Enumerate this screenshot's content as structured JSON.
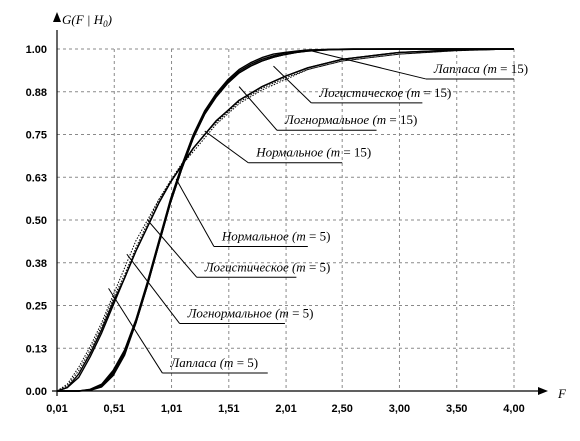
{
  "chart_data": {
    "type": "line",
    "ylabel": "G(F | H0)",
    "ylabel_parts": {
      "main": "G(F | H",
      "sub": "0",
      "close": ")"
    },
    "xlabel": "F",
    "xlim": [
      0.01,
      4.0
    ],
    "ylim": [
      0,
      1.0
    ],
    "grid": true,
    "x_ticks": [
      {
        "value": 0.01,
        "label": "0,01"
      },
      {
        "value": 0.51,
        "label": "0,51"
      },
      {
        "value": 1.01,
        "label": "1,01"
      },
      {
        "value": 1.51,
        "label": "1,51"
      },
      {
        "value": 2.01,
        "label": "2,01"
      },
      {
        "value": 2.5,
        "label": "2,50"
      },
      {
        "value": 3.0,
        "label": "3,00"
      },
      {
        "value": 3.5,
        "label": "3,50"
      },
      {
        "value": 4.0,
        "label": "4,00"
      }
    ],
    "y_ticks": [
      {
        "value": 0.0,
        "label": "0.00"
      },
      {
        "value": 0.125,
        "label": "0.13"
      },
      {
        "value": 0.25,
        "label": "0.25"
      },
      {
        "value": 0.375,
        "label": "0.38"
      },
      {
        "value": 0.5,
        "label": "0.50"
      },
      {
        "value": 0.625,
        "label": "0.63"
      },
      {
        "value": 0.75,
        "label": "0.75"
      },
      {
        "value": 0.875,
        "label": "0.88"
      },
      {
        "value": 1.0,
        "label": "1.00"
      }
    ],
    "series": [
      {
        "name": "Лапласа (m = 5)",
        "dash": "solid",
        "x": [
          0.01,
          0.1,
          0.2,
          0.3,
          0.4,
          0.5,
          0.6,
          0.7,
          0.8,
          0.9,
          1.0,
          1.1,
          1.2,
          1.3,
          1.4,
          1.5,
          1.6,
          1.8,
          2.0,
          2.2,
          2.5,
          3.0,
          3.5,
          4.0
        ],
        "y": [
          0.0,
          0.01,
          0.05,
          0.11,
          0.18,
          0.26,
          0.33,
          0.41,
          0.48,
          0.55,
          0.61,
          0.66,
          0.71,
          0.75,
          0.79,
          0.82,
          0.85,
          0.89,
          0.92,
          0.945,
          0.97,
          0.99,
          0.997,
          1.0
        ]
      },
      {
        "name": "Логнормальное (m = 5)",
        "dash": "solid",
        "x": [
          0.01,
          0.1,
          0.2,
          0.3,
          0.4,
          0.5,
          0.6,
          0.7,
          0.8,
          0.9,
          1.0,
          1.1,
          1.2,
          1.3,
          1.4,
          1.5,
          1.6,
          1.8,
          2.0,
          2.2,
          2.5,
          3.0,
          3.5,
          4.0
        ],
        "y": [
          0.0,
          0.01,
          0.04,
          0.1,
          0.17,
          0.25,
          0.33,
          0.41,
          0.48,
          0.55,
          0.61,
          0.66,
          0.71,
          0.75,
          0.79,
          0.82,
          0.85,
          0.89,
          0.92,
          0.945,
          0.97,
          0.99,
          0.997,
          1.0
        ]
      },
      {
        "name": "Логистическое (m = 5)",
        "dash": "dotted",
        "x": [
          0.01,
          0.1,
          0.2,
          0.3,
          0.4,
          0.5,
          0.6,
          0.7,
          0.8,
          0.9,
          1.0,
          1.1,
          1.2,
          1.3,
          1.4,
          1.5,
          1.6,
          1.8,
          2.0,
          2.2,
          2.5,
          3.0,
          3.5,
          4.0
        ],
        "y": [
          0.0,
          0.015,
          0.06,
          0.12,
          0.19,
          0.27,
          0.34,
          0.42,
          0.49,
          0.56,
          0.615,
          0.665,
          0.71,
          0.75,
          0.785,
          0.815,
          0.845,
          0.885,
          0.915,
          0.94,
          0.965,
          0.985,
          0.995,
          1.0
        ]
      },
      {
        "name": "Нормальное (m = 5)",
        "dash": "dotted",
        "x": [
          0.01,
          0.1,
          0.2,
          0.3,
          0.4,
          0.5,
          0.6,
          0.7,
          0.8,
          0.9,
          1.0,
          1.1,
          1.2,
          1.3,
          1.4,
          1.5,
          1.6,
          1.8,
          2.0,
          2.2,
          2.5,
          3.0,
          3.5,
          4.0
        ],
        "y": [
          0.0,
          0.02,
          0.07,
          0.13,
          0.2,
          0.28,
          0.36,
          0.44,
          0.5,
          0.56,
          0.61,
          0.66,
          0.7,
          0.74,
          0.78,
          0.81,
          0.84,
          0.88,
          0.91,
          0.94,
          0.965,
          0.985,
          0.995,
          1.0
        ]
      },
      {
        "name": "Лапласа (m = 15)",
        "dash": "solid",
        "x": [
          0.01,
          0.2,
          0.3,
          0.4,
          0.5,
          0.6,
          0.7,
          0.8,
          0.9,
          1.0,
          1.1,
          1.2,
          1.3,
          1.4,
          1.5,
          1.6,
          1.7,
          1.8,
          1.9,
          2.0,
          2.1,
          2.2,
          2.4,
          2.6,
          3.0,
          3.5,
          4.0
        ],
        "y": [
          0.0,
          0.0,
          0.005,
          0.02,
          0.06,
          0.12,
          0.21,
          0.32,
          0.44,
          0.56,
          0.66,
          0.75,
          0.82,
          0.87,
          0.91,
          0.94,
          0.96,
          0.975,
          0.985,
          0.99,
          0.994,
          0.997,
          0.999,
          1.0,
          1.0,
          1.0,
          1.0
        ]
      },
      {
        "name": "Логистическое (m = 15)",
        "dash": "solid",
        "x": [
          0.01,
          0.2,
          0.3,
          0.4,
          0.5,
          0.6,
          0.7,
          0.8,
          0.9,
          1.0,
          1.1,
          1.2,
          1.3,
          1.4,
          1.5,
          1.6,
          1.7,
          1.8,
          1.9,
          2.0,
          2.1,
          2.2,
          2.4,
          2.6,
          3.0,
          3.5,
          4.0
        ],
        "y": [
          0.0,
          0.0,
          0.004,
          0.018,
          0.055,
          0.115,
          0.2,
          0.31,
          0.43,
          0.55,
          0.65,
          0.74,
          0.815,
          0.865,
          0.905,
          0.935,
          0.955,
          0.97,
          0.98,
          0.988,
          0.993,
          0.996,
          0.999,
          1.0,
          1.0,
          1.0,
          1.0
        ]
      },
      {
        "name": "Логнормальное (m = 15)",
        "dash": "solid",
        "x": [
          0.01,
          0.2,
          0.3,
          0.4,
          0.5,
          0.6,
          0.7,
          0.8,
          0.9,
          1.0,
          1.1,
          1.2,
          1.3,
          1.4,
          1.5,
          1.6,
          1.7,
          1.8,
          1.9,
          2.0,
          2.1,
          2.2,
          2.4,
          2.6,
          3.0,
          3.5,
          4.0
        ],
        "y": [
          0.0,
          0.0,
          0.003,
          0.015,
          0.05,
          0.11,
          0.2,
          0.31,
          0.43,
          0.55,
          0.65,
          0.74,
          0.81,
          0.86,
          0.9,
          0.93,
          0.95,
          0.965,
          0.976,
          0.984,
          0.99,
          0.994,
          0.998,
          0.999,
          1.0,
          1.0,
          1.0
        ]
      },
      {
        "name": "Нормальное (m = 15)",
        "dash": "solid",
        "x": [
          0.01,
          0.2,
          0.3,
          0.4,
          0.5,
          0.6,
          0.7,
          0.8,
          0.9,
          1.0,
          1.1,
          1.2,
          1.3,
          1.4,
          1.5,
          1.6,
          1.7,
          1.8,
          1.9,
          2.0,
          2.1,
          2.2,
          2.4,
          2.6,
          3.0,
          3.5,
          4.0
        ],
        "y": [
          0.0,
          0.0,
          0.002,
          0.012,
          0.045,
          0.105,
          0.2,
          0.31,
          0.43,
          0.55,
          0.65,
          0.74,
          0.81,
          0.86,
          0.9,
          0.93,
          0.95,
          0.965,
          0.976,
          0.984,
          0.99,
          0.994,
          0.998,
          0.999,
          1.0,
          1.0,
          1.0
        ]
      }
    ],
    "annotations": [
      {
        "name": "Лапласа",
        "m": "15",
        "point": [
          2.2,
          0.997
        ],
        "label_at": [
          3.3,
          0.93
        ],
        "underline_to": 4.0
      },
      {
        "name": "Логистическое",
        "m": "15",
        "point": [
          1.9,
          0.95
        ],
        "label_at": [
          2.3,
          0.86
        ],
        "underline_to": 3.2
      },
      {
        "name": "Логнормальное",
        "m": "15",
        "point": [
          1.6,
          0.89
        ],
        "label_at": [
          2.0,
          0.78
        ],
        "underline_to": 2.8
      },
      {
        "name": "Нормальное",
        "m": "15",
        "point": [
          1.3,
          0.76
        ],
        "label_at": [
          1.75,
          0.685
        ],
        "underline_to": 2.5
      },
      {
        "name": "Нормальное",
        "m": "5",
        "point": [
          1.05,
          0.62
        ],
        "label_at": [
          1.45,
          0.44
        ],
        "underline_to": 2.2
      },
      {
        "name": "Логистическое",
        "m": "5",
        "point": [
          0.8,
          0.5
        ],
        "label_at": [
          1.3,
          0.35
        ],
        "underline_to": 2.1
      },
      {
        "name": "Логнормальное",
        "m": "5",
        "point": [
          0.62,
          0.4
        ],
        "label_at": [
          1.15,
          0.215
        ],
        "underline_to": 2.0
      },
      {
        "name": "Лапласа",
        "m": "5",
        "point": [
          0.46,
          0.3
        ],
        "label_at": [
          1.0,
          0.07
        ],
        "underline_to": 1.85
      }
    ]
  }
}
